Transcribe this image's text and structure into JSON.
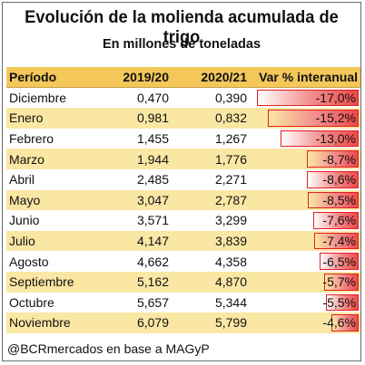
{
  "title": "Evolución de la molienda acumulada de trigo",
  "subtitle": "En millones de toneladas",
  "footer": "@BCRmercados en base a MAGyP",
  "chart_data": {
    "type": "table",
    "columns": [
      "Período",
      "2019/20",
      "2020/21",
      "Var % interanual"
    ],
    "rows": [
      {
        "period": "Diciembre",
        "v2019": "0,470",
        "v2020": "0,390",
        "var_label": "-17,0%",
        "var": -17.0
      },
      {
        "period": "Enero",
        "v2019": "0,981",
        "v2020": "0,832",
        "var_label": "-15,2%",
        "var": -15.2
      },
      {
        "period": "Febrero",
        "v2019": "1,455",
        "v2020": "1,267",
        "var_label": "-13,0%",
        "var": -13.0
      },
      {
        "period": "Marzo",
        "v2019": "1,944",
        "v2020": "1,776",
        "var_label": "-8,7%",
        "var": -8.7
      },
      {
        "period": "Abril",
        "v2019": "2,485",
        "v2020": "2,271",
        "var_label": "-8,6%",
        "var": -8.6
      },
      {
        "period": "Mayo",
        "v2019": "3,047",
        "v2020": "2,787",
        "var_label": "-8,5%",
        "var": -8.5
      },
      {
        "period": "Junio",
        "v2019": "3,571",
        "v2020": "3,299",
        "var_label": "-7,6%",
        "var": -7.6
      },
      {
        "period": "Julio",
        "v2019": "4,147",
        "v2020": "3,839",
        "var_label": "-7,4%",
        "var": -7.4
      },
      {
        "period": "Agosto",
        "v2019": "4,662",
        "v2020": "4,358",
        "var_label": "-6,5%",
        "var": -6.5
      },
      {
        "period": "Septiembre",
        "v2019": "5,162",
        "v2020": "4,870",
        "var_label": "-5,7%",
        "var": -5.7
      },
      {
        "period": "Octubre",
        "v2019": "5,657",
        "v2020": "5,344",
        "var_label": "-5,5%",
        "var": -5.5
      },
      {
        "period": "Noviembre",
        "v2019": "6,079",
        "v2020": "5,799",
        "var_label": "-4,6%",
        "var": -4.6
      }
    ]
  },
  "colors": {
    "header_bg": "#f4c75a",
    "row_alt_bg": "#fbe7a4",
    "bar_border": "#e02020",
    "bar_fill": "#ec4a4a"
  }
}
